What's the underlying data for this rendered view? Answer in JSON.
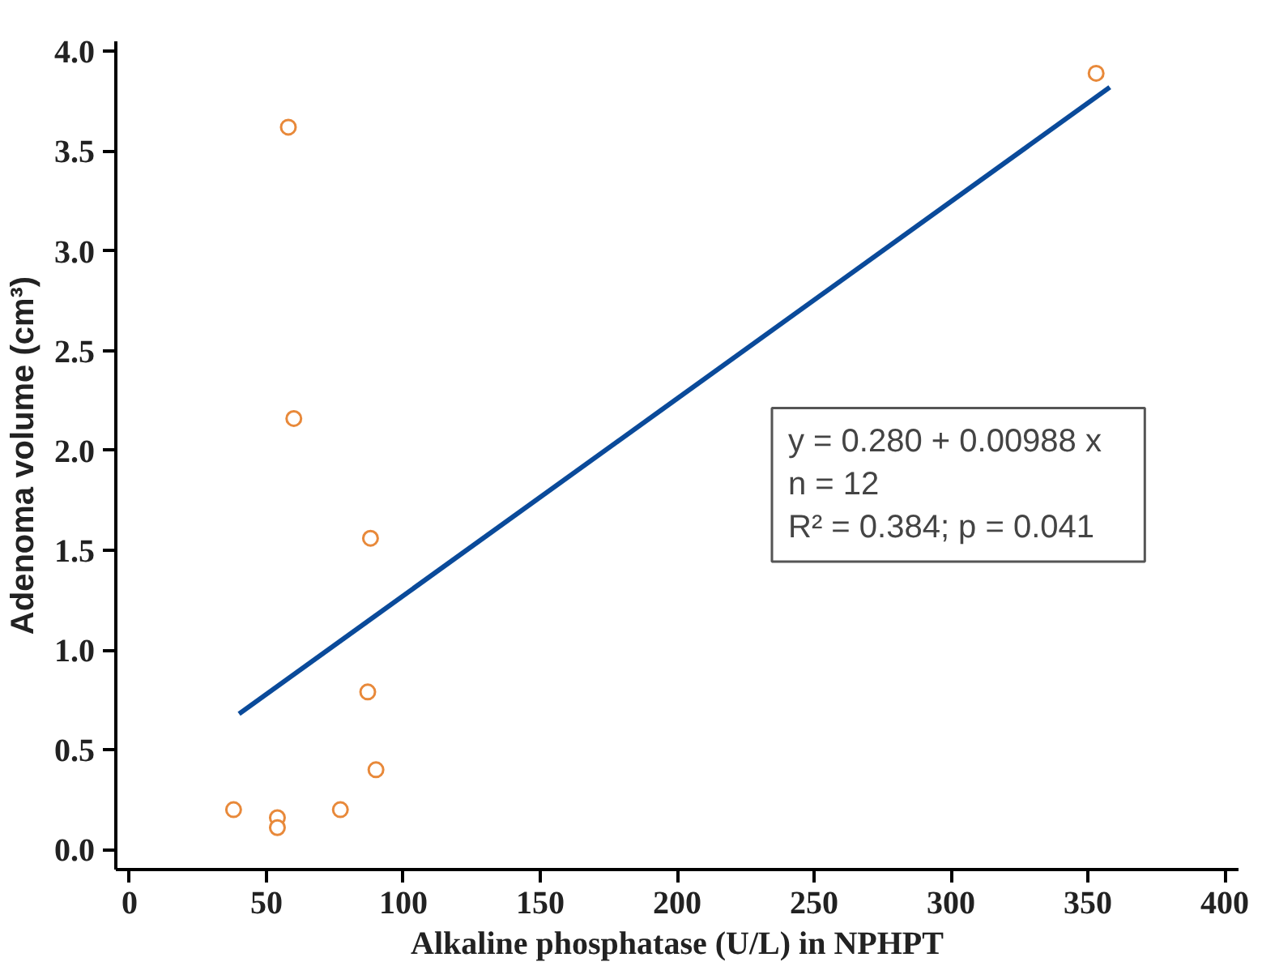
{
  "chart_data": {
    "type": "scatter",
    "xlabel": "Alkaline phosphatase (U/L) in NPHPT",
    "ylabel": "Adenoma volume (cm³)",
    "xlim": [
      -5,
      405
    ],
    "ylim": [
      -0.1,
      4.05
    ],
    "xticks": [
      0,
      50,
      100,
      150,
      200,
      250,
      300,
      350,
      400
    ],
    "yticks": [
      {
        "value": 0,
        "label": "0.0"
      },
      {
        "value": 0.5,
        "label": "0.5"
      },
      {
        "value": 1,
        "label": "1.0"
      },
      {
        "value": 1.5,
        "label": "1.5"
      },
      {
        "value": 2,
        "label": "2.0"
      },
      {
        "value": 2.5,
        "label": "2.5"
      },
      {
        "value": 3,
        "label": "3.0"
      },
      {
        "value": 3.5,
        "label": "3.5"
      },
      {
        "value": 4,
        "label": "4.0"
      }
    ],
    "grid": false,
    "series": [
      {
        "color": "#ffffff",
        "marker": "circle",
        "x": [
          38,
          54,
          54,
          77,
          87,
          90,
          88,
          60,
          58,
          353
        ],
        "values": [
          0.2,
          0.16,
          0.11,
          0.2,
          0.79,
          0.4,
          1.56,
          2.16,
          3.62,
          3.89
        ]
      },
      {
        "type": "line",
        "color": "#0a4a9a",
        "x": [
          40,
          358
        ],
        "values": [
          0.68,
          3.82
        ]
      }
    ],
    "annotations": [
      "y = 0.280  +  0.00988  x",
      "n = 12",
      "R² = 0.384; p = 0.041"
    ]
  }
}
